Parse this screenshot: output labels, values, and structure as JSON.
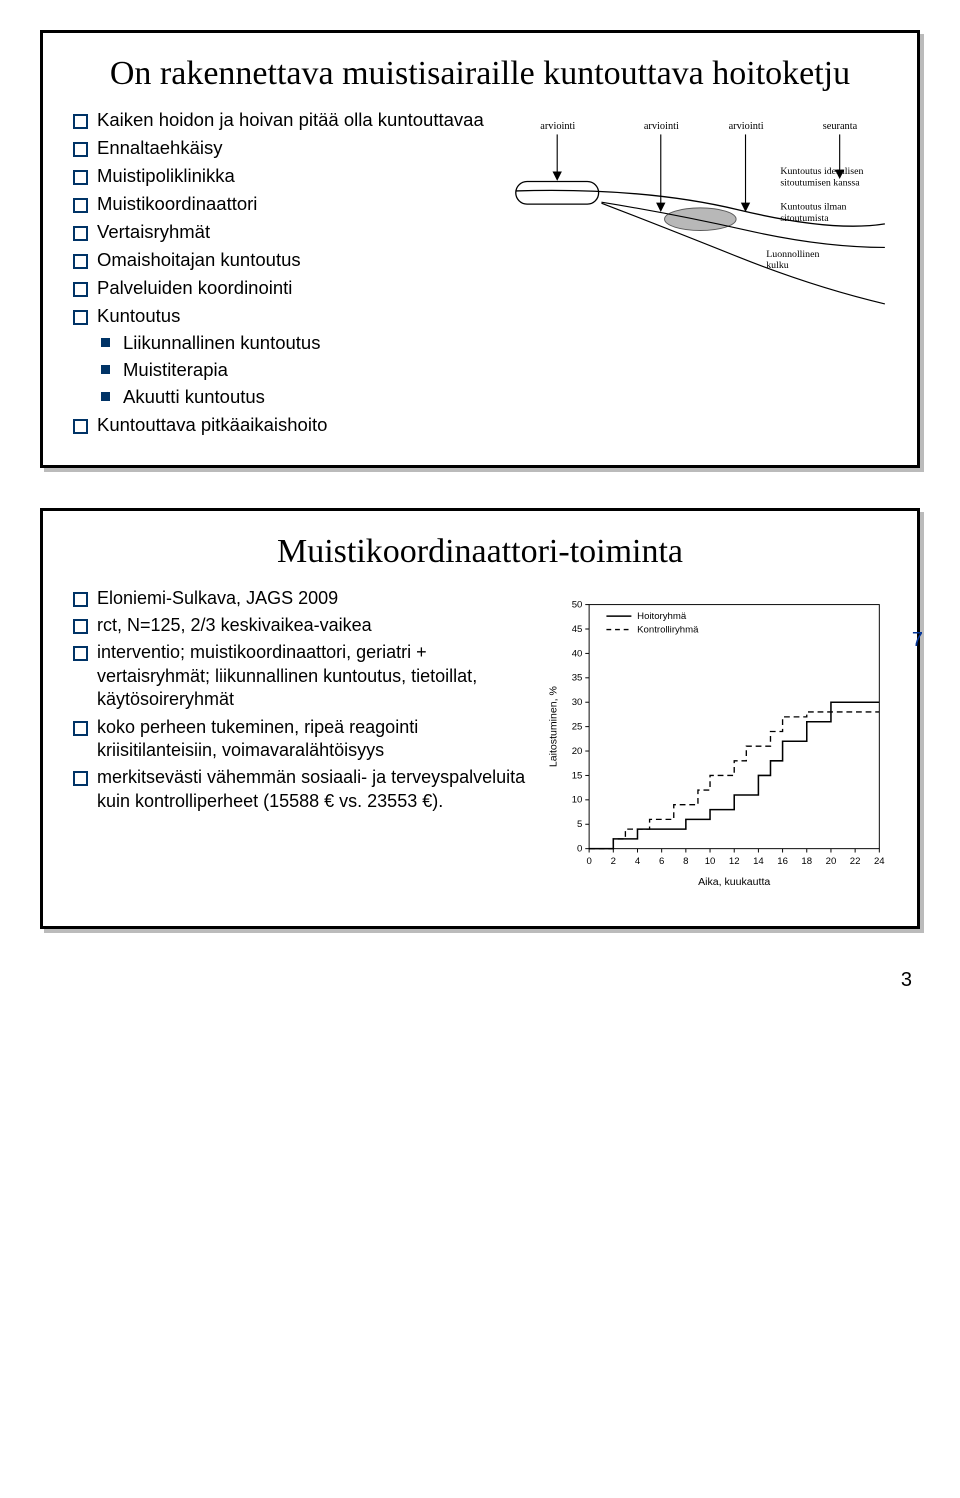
{
  "page_number": "3",
  "slide1": {
    "title": "On rakennettava muistisairaille kuntouttava hoitoketju",
    "bullets": [
      "Kaiken hoidon ja hoivan pitää olla kuntouttavaa",
      "Ennaltaehkäisy",
      "Muistipoliklinikka",
      "Muistikoordinaattori",
      "Vertaisryhmät",
      "Omaishoitajan kuntoutus",
      "Palveluiden koordinointi",
      "Kuntoutus",
      "Kuntouttava pitkäaikaishoito"
    ],
    "sub_bullets": [
      "Liikunnallinen kuntoutus",
      "Muistiterapia",
      "Akuutti kuntoutus"
    ],
    "diagram": {
      "top_labels": [
        "arviointi",
        "arviointi",
        "arviointi",
        "seuranta"
      ],
      "text_ideal": "Kuntoutus ideaalisen sitoutumisen kanssa",
      "text_without": "Kuntoutus ilman sitoutumista",
      "text_natural": "Luonnollinen kulku",
      "colors": {
        "arrow": "#000000",
        "ellipse_fill": "#b8b8b8",
        "ellipse_stroke": "#5a5a5a",
        "curve": "#000000",
        "bg": "#ffffff"
      },
      "label_fontsize": 10
    }
  },
  "slide2": {
    "title": "Muistikoordinaattori-toiminta",
    "side_number": "7",
    "bullets": [
      "Eloniemi-Sulkava, JAGS 2009",
      "rct, N=125, 2/3 keskivaikea-vaikea",
      "interventio; muistikoordinaattori, geriatri + vertaisryhmät; liikunnallinen kuntoutus, tietoillat, käytösoireryhmät",
      "koko perheen tukeminen, ripeä reagointi kriisitilanteisiin, voimavaralähtöisyys",
      "merkitsevästi vähemmän sosiaali- ja terveyspalveluita kuin kontrolliperheet (15588 € vs. 23553 €)."
    ],
    "chart": {
      "type": "step-line",
      "xlabel": "Aika, kuukautta",
      "ylabel": "Laitostuminen, %",
      "xlim": [
        0,
        24
      ],
      "ylim": [
        0,
        50
      ],
      "xticks": [
        0,
        2,
        4,
        6,
        8,
        10,
        12,
        14,
        16,
        18,
        20,
        22,
        24
      ],
      "yticks": [
        0,
        5,
        10,
        15,
        20,
        25,
        30,
        35,
        40,
        45,
        50
      ],
      "legend": {
        "items": [
          "Hoitoryhmä",
          "Kontrolliryhmä"
        ],
        "position": "top-left-inside"
      },
      "series": {
        "hoitoryhma": {
          "label": "Hoitoryhmä",
          "color": "#000000",
          "dash": "solid",
          "points": [
            [
              0,
              0
            ],
            [
              2,
              0
            ],
            [
              2,
              2
            ],
            [
              4,
              2
            ],
            [
              4,
              4
            ],
            [
              6,
              4
            ],
            [
              8,
              4
            ],
            [
              8,
              6
            ],
            [
              10,
              6
            ],
            [
              10,
              8
            ],
            [
              12,
              8
            ],
            [
              12,
              11
            ],
            [
              14,
              11
            ],
            [
              14,
              15
            ],
            [
              15,
              15
            ],
            [
              15,
              18
            ],
            [
              16,
              18
            ],
            [
              16,
              22
            ],
            [
              18,
              22
            ],
            [
              18,
              26
            ],
            [
              19,
              26
            ],
            [
              19,
              26
            ],
            [
              20,
              26
            ],
            [
              20,
              30
            ],
            [
              22,
              30
            ],
            [
              22,
              30
            ],
            [
              24,
              30
            ]
          ]
        },
        "kontrolliryhma": {
          "label": "Kontrolliryhmä",
          "color": "#000000",
          "dash": "dashed",
          "points": [
            [
              0,
              0
            ],
            [
              2,
              0
            ],
            [
              2,
              2
            ],
            [
              3,
              2
            ],
            [
              3,
              4
            ],
            [
              5,
              4
            ],
            [
              5,
              6
            ],
            [
              7,
              6
            ],
            [
              7,
              9
            ],
            [
              9,
              9
            ],
            [
              9,
              12
            ],
            [
              10,
              12
            ],
            [
              10,
              15
            ],
            [
              12,
              15
            ],
            [
              12,
              18
            ],
            [
              13,
              18
            ],
            [
              13,
              21
            ],
            [
              15,
              21
            ],
            [
              15,
              24
            ],
            [
              16,
              24
            ],
            [
              16,
              27
            ],
            [
              18,
              27
            ],
            [
              18,
              28
            ],
            [
              20,
              28
            ],
            [
              20,
              28
            ],
            [
              24,
              28
            ]
          ]
        }
      },
      "axis_fontsize": 10,
      "label_fontsize": 11,
      "grid_color": "#000000",
      "background_color": "#ffffff"
    }
  }
}
